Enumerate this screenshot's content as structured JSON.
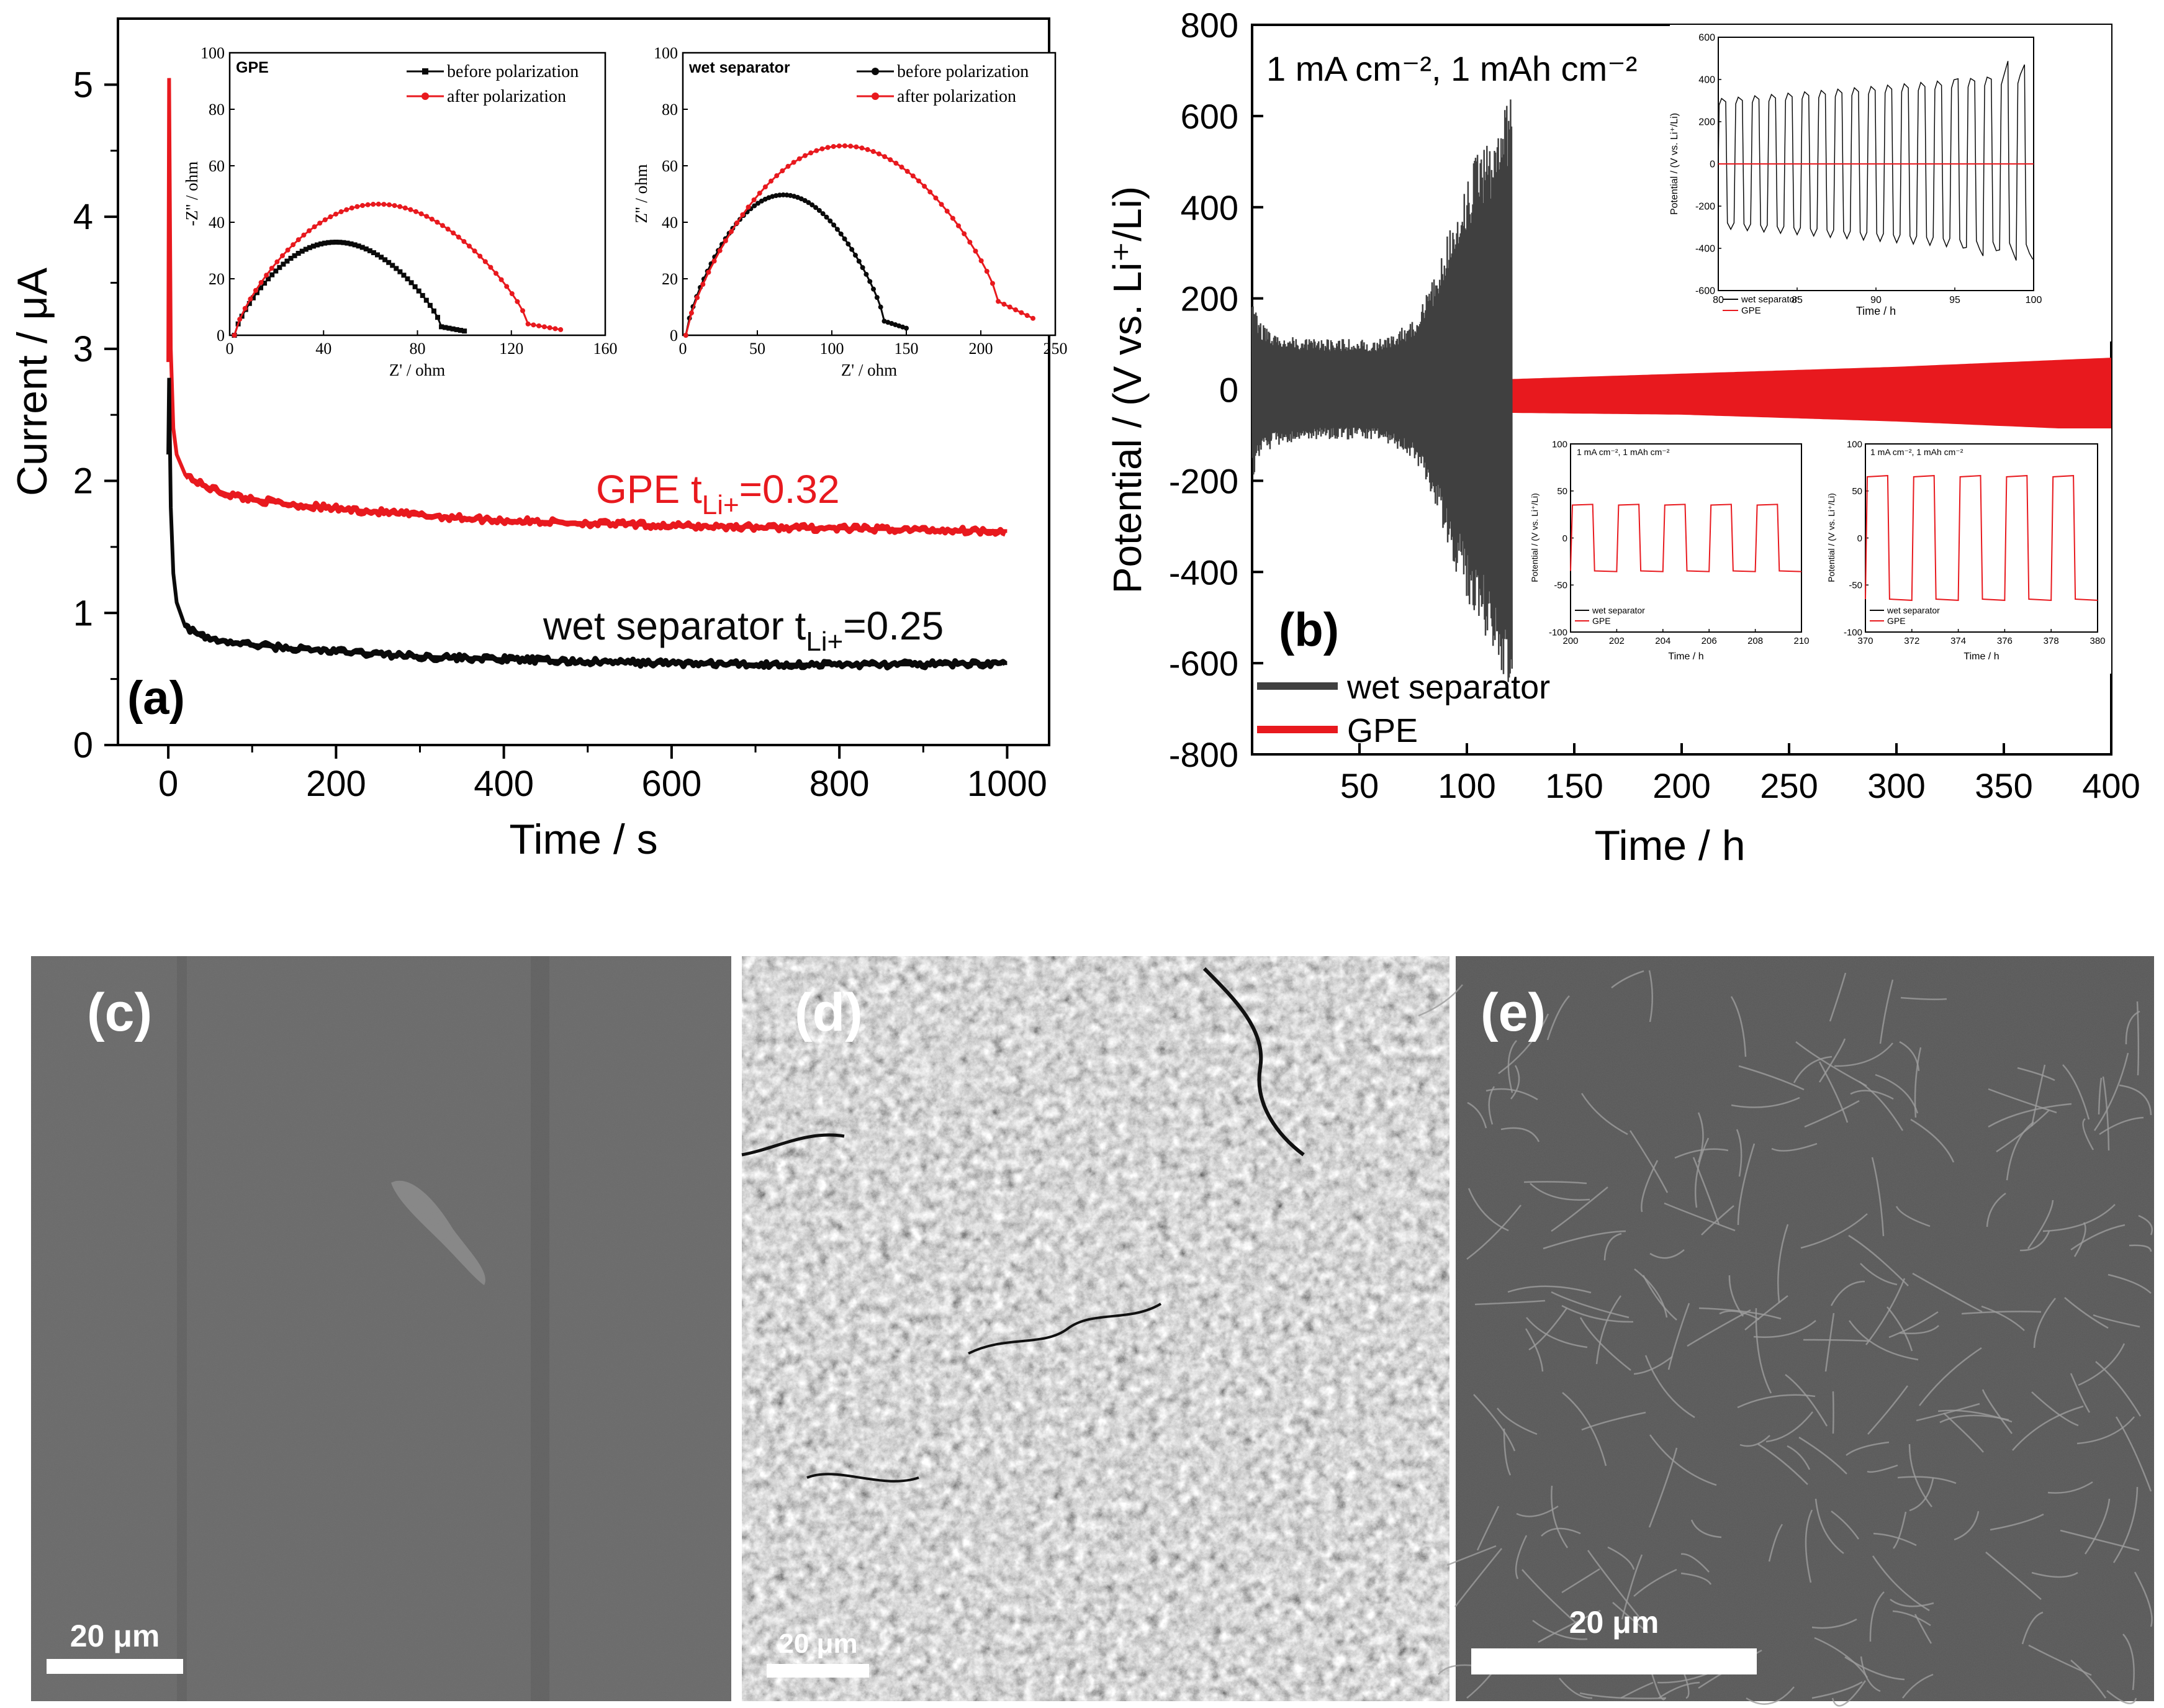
{
  "colors": {
    "red": "#e8191e",
    "black": "#0a0a0a",
    "gray_trace": "#404040"
  },
  "panel_a": {
    "label": "(a)",
    "xlabel": "Time / s",
    "ylabel": "Current / μA",
    "xticks": [
      "0",
      "200",
      "400",
      "600",
      "800",
      "1000"
    ],
    "yticks": [
      "0",
      "1",
      "2",
      "3",
      "4",
      "5"
    ],
    "ann_gpe": "GPE t",
    "ann_gpe_sub": "Li+",
    "ann_gpe_val": "=0.32",
    "ann_wet": "wet separator t",
    "ann_wet_sub": "Li+",
    "ann_wet_val": "=0.25",
    "inset1": {
      "tag": "GPE",
      "xlabel": "Z' / ohm",
      "ylabel": "-Z'' / ohm",
      "xticks": [
        "0",
        "40",
        "80",
        "120",
        "160"
      ],
      "yticks": [
        "0",
        "20",
        "40",
        "60",
        "80",
        "100"
      ],
      "legend": [
        "before polarization",
        "after polarization"
      ]
    },
    "inset2": {
      "tag": "wet separator",
      "xlabel": "Z' / ohm",
      "ylabel": "Z'' / ohm",
      "xticks": [
        "0",
        "50",
        "100",
        "150",
        "200",
        "250"
      ],
      "yticks": [
        "0",
        "20",
        "40",
        "60",
        "80",
        "100"
      ],
      "legend": [
        "before polarization",
        "after polarization"
      ]
    }
  },
  "panel_b": {
    "label": "(b)",
    "condition": "1 mA cm⁻²,  1 mAh cm⁻²",
    "xlabel": "Time / h",
    "ylabel": "Potential / (V vs. Li⁺/Li)",
    "xticks": [
      "50",
      "100",
      "150",
      "200",
      "250",
      "300",
      "350",
      "400"
    ],
    "yticks": [
      "800",
      "600",
      "400",
      "200",
      "0",
      "-200",
      "-400",
      "-600",
      "-800"
    ],
    "legend": [
      "wet separator",
      "GPE"
    ],
    "inset_top": {
      "xlabel": "Time / h",
      "ylabel": "Potential / (V vs. Li⁺/Li)",
      "xticks": [
        "80",
        "85",
        "90",
        "95",
        "100"
      ],
      "yticks": [
        "600",
        "400",
        "200",
        "0",
        "-200",
        "-400",
        "-600"
      ],
      "legend": [
        "wet separator",
        "GPE"
      ]
    },
    "inset_mid": {
      "condition": "1 mA cm⁻²,  1 mAh cm⁻²",
      "xlabel": "Time / h",
      "ylabel": "Potential / (V vs. Li⁺/Li)",
      "xticks": [
        "200",
        "202",
        "204",
        "206",
        "208",
        "210"
      ],
      "yticks": [
        "100",
        "50",
        "0",
        "-50",
        "-100"
      ],
      "legend": [
        "wet separator",
        "GPE"
      ]
    },
    "inset_right": {
      "condition": "1 mA cm⁻²,  1 mAh cm⁻²",
      "xlabel": "Time / h",
      "ylabel": "Potential / (V vs. Li⁺/Li)",
      "xticks": [
        "370",
        "372",
        "374",
        "376",
        "378",
        "380"
      ],
      "yticks": [
        "100",
        "50",
        "0",
        "-50",
        "-100"
      ],
      "legend": [
        "wet separator",
        "GPE"
      ]
    }
  },
  "sem": {
    "c": {
      "label": "(c)",
      "scale": "20 μm"
    },
    "d": {
      "label": "(d)",
      "scale": "20 μm"
    },
    "e": {
      "label": "(e)",
      "scale": "20 μm"
    }
  },
  "chart_data": [
    {
      "type": "line",
      "panel": "a",
      "xlabel": "Time / s",
      "ylabel": "Current / μA",
      "xlim": [
        -60,
        1050
      ],
      "ylim": [
        0,
        5.5
      ],
      "series": [
        {
          "name": "GPE tLi+=0.32",
          "color": "#e8191e",
          "x": [
            0,
            1,
            3,
            6,
            10,
            20,
            40,
            70,
            100,
            150,
            200,
            300,
            400,
            500,
            600,
            700,
            800,
            900,
            1000
          ],
          "y": [
            2.9,
            5.05,
            3.0,
            2.4,
            2.2,
            2.05,
            1.97,
            1.9,
            1.86,
            1.82,
            1.79,
            1.74,
            1.7,
            1.68,
            1.66,
            1.65,
            1.64,
            1.63,
            1.62
          ]
        },
        {
          "name": "wet separator tLi+=0.25",
          "color": "#0a0a0a",
          "x": [
            0,
            1,
            3,
            6,
            10,
            20,
            40,
            70,
            100,
            150,
            200,
            300,
            400,
            500,
            600,
            700,
            800,
            900,
            1000
          ],
          "y": [
            2.2,
            2.78,
            1.8,
            1.3,
            1.08,
            0.9,
            0.82,
            0.78,
            0.76,
            0.73,
            0.71,
            0.67,
            0.65,
            0.63,
            0.62,
            0.61,
            0.61,
            0.61,
            0.62
          ]
        }
      ]
    },
    {
      "type": "line",
      "panel": "a-inset-GPE",
      "xlim": [
        0,
        160
      ],
      "ylim": [
        0,
        100
      ],
      "series": [
        {
          "name": "before polarization",
          "color": "#0a0a0a",
          "r_start": 2,
          "r_end": 100,
          "peak": 34,
          "tail": 3
        },
        {
          "name": "after polarization",
          "color": "#e8191e",
          "r_start": 2,
          "r_end": 141,
          "peak": 48,
          "tail": 4
        }
      ]
    },
    {
      "type": "line",
      "panel": "a-inset-wet-separator",
      "xlim": [
        0,
        250
      ],
      "ylim": [
        0,
        100
      ],
      "series": [
        {
          "name": "before polarization",
          "color": "#0a0a0a",
          "r_start": 2,
          "r_end": 150,
          "peak": 51,
          "tail": 5
        },
        {
          "name": "after polarization",
          "color": "#e8191e",
          "r_start": 2,
          "r_end": 235,
          "peak": 66,
          "tail": 12
        }
      ]
    },
    {
      "type": "line",
      "panel": "b",
      "xlabel": "Time / h",
      "ylabel": "Potential / (V vs. Li+/Li)",
      "xlim": [
        0,
        400
      ],
      "ylim": [
        -800,
        800
      ],
      "series": [
        {
          "name": "wet separator",
          "color": "#404040",
          "t": [
            0,
            3,
            10,
            30,
            60,
            75,
            85,
            95,
            105,
            112,
            118,
            121
          ],
          "amp": [
            200,
            150,
            125,
            110,
            112,
            150,
            250,
            400,
            520,
            560,
            640,
            650
          ]
        },
        {
          "name": "GPE",
          "color": "#e8191e",
          "t": [
            0,
            1,
            3,
            20,
            100,
            200,
            300,
            400
          ],
          "amp": [
            110,
            60,
            30,
            25,
            35,
            45,
            60,
            80
          ],
          "offset": [
            0,
            0,
            -10,
            -15,
            -15,
            -10,
            -10,
            -10
          ]
        }
      ]
    },
    {
      "type": "line",
      "panel": "b-inset-80-100h",
      "xlim": [
        80,
        100
      ],
      "ylim": [
        -600,
        600
      ],
      "series": [
        {
          "name": "wet separator",
          "color": "#0a0a0a",
          "cycles": 19,
          "amp_start": 310,
          "amp_end": 430
        },
        {
          "name": "GPE",
          "color": "#e8191e",
          "value": 0
        }
      ]
    },
    {
      "type": "line",
      "panel": "b-inset-200-210h",
      "xlim": [
        200,
        210
      ],
      "ylim": [
        -100,
        100
      ],
      "series": [
        {
          "name": "GPE",
          "color": "#e8191e",
          "amplitude": 35,
          "period_h": 2
        }
      ]
    },
    {
      "type": "line",
      "panel": "b-inset-370-380h",
      "xlim": [
        370,
        380
      ],
      "ylim": [
        -100,
        100
      ],
      "series": [
        {
          "name": "GPE",
          "color": "#e8191e",
          "amplitude": 65,
          "period_h": 2
        }
      ]
    }
  ]
}
